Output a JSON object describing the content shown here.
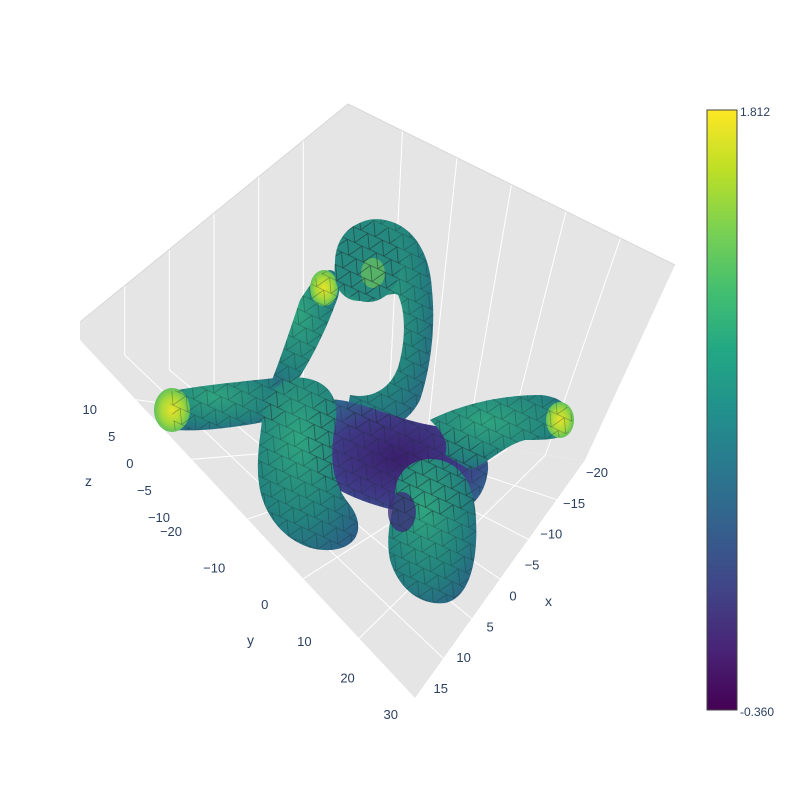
{
  "chart_data": {
    "type": "mesh3d",
    "title": "",
    "axes": {
      "x": {
        "label": "x",
        "ticks": [
          "−20",
          "−15",
          "−10",
          "−5",
          "0",
          "5",
          "10",
          "15"
        ],
        "range": [
          -22,
          17
        ]
      },
      "y": {
        "label": "y",
        "ticks": [
          "−20",
          "−10",
          "0",
          "10",
          "20",
          "30"
        ],
        "range": [
          -22,
          31
        ]
      },
      "z": {
        "label": "z",
        "ticks": [
          "−10",
          "−5",
          "0",
          "5",
          "10"
        ],
        "range": [
          -11,
          12
        ]
      }
    },
    "colorbar": {
      "min": -0.36,
      "max": 1.812,
      "min_label": "-0.360",
      "max_label": "1.812",
      "colorscale": "Viridis"
    },
    "surface": "tubular knotted mesh with four rounded ends, colored by scalar field",
    "grid": true
  }
}
